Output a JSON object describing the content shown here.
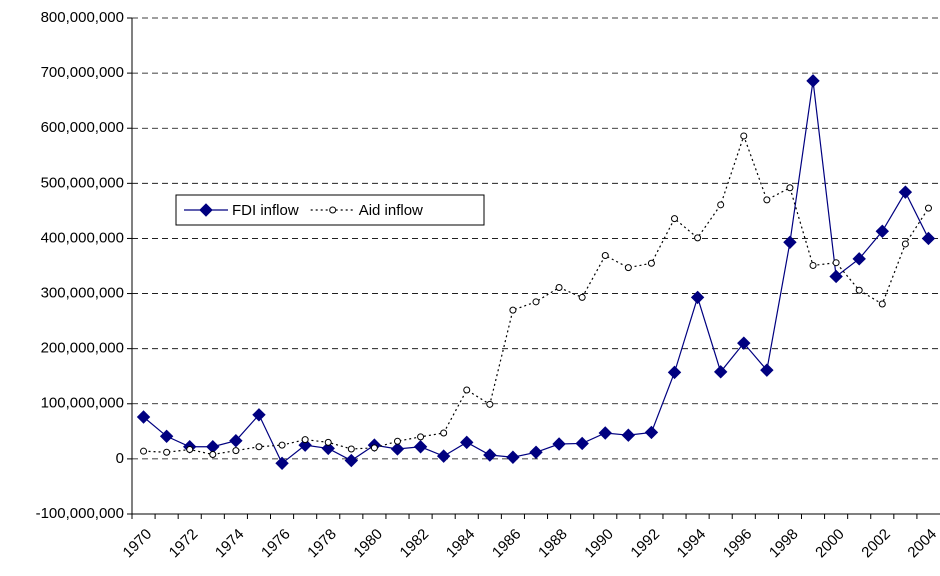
{
  "chart_data": {
    "type": "line",
    "categories": [
      "1970",
      null,
      "1972",
      null,
      "1974",
      null,
      "1976",
      null,
      "1978",
      null,
      "1980",
      null,
      "1982",
      null,
      "1984",
      null,
      "1986",
      null,
      "1988",
      null,
      "1990",
      null,
      "1992",
      null,
      "1994",
      null,
      "1996",
      null,
      "1998",
      null,
      "2000",
      null,
      "2002",
      null,
      "2004"
    ],
    "series": [
      {
        "name": "FDI inflow",
        "color": "#000080",
        "line_style": "solid",
        "marker": "diamond",
        "values": [
          76000000,
          41000000,
          22000000,
          22000000,
          33000000,
          80000000,
          -8000000,
          25000000,
          19000000,
          -3000000,
          25000000,
          18000000,
          22000000,
          5000000,
          30000000,
          7000000,
          3000000,
          12000000,
          27000000,
          28000000,
          47000000,
          43000000,
          48000000,
          157000000,
          293000000,
          158000000,
          210000000,
          161000000,
          393000000,
          686000000,
          331000000,
          363000000,
          413000000,
          484000000,
          400000000
        ]
      },
      {
        "name": "Aid inflow",
        "color": "#000000",
        "line_style": "dotted",
        "marker": "circle",
        "values": [
          14000000,
          12000000,
          17000000,
          8000000,
          15000000,
          22000000,
          25000000,
          35000000,
          30000000,
          18000000,
          20000000,
          32000000,
          40000000,
          47000000,
          125000000,
          99000000,
          270000000,
          285000000,
          311000000,
          293000000,
          369000000,
          347000000,
          355000000,
          436000000,
          401000000,
          461000000,
          586000000,
          470000000,
          492000000,
          351000000,
          356000000,
          306000000,
          281000000,
          390000000,
          455000000
        ]
      }
    ],
    "ylim": [
      -100000000,
      800000000
    ],
    "yticks": [
      {
        "value": -100000000,
        "label": "-100,000,000"
      },
      0,
      {
        "value": 100000000,
        "label": "100,000,000"
      },
      {
        "value": 200000000,
        "label": "200,000,000"
      },
      {
        "value": 300000000,
        "label": "300,000,000"
      },
      {
        "value": 400000000,
        "label": "400,000,000"
      },
      {
        "value": 500000000,
        "label": "500,000,000"
      },
      {
        "value": 600000000,
        "label": "600,000,000"
      },
      {
        "value": 700000000,
        "label": "700,000,000"
      },
      {
        "value": 800000000,
        "label": "800,000,000"
      }
    ],
    "grid": true,
    "legend": "center left"
  }
}
